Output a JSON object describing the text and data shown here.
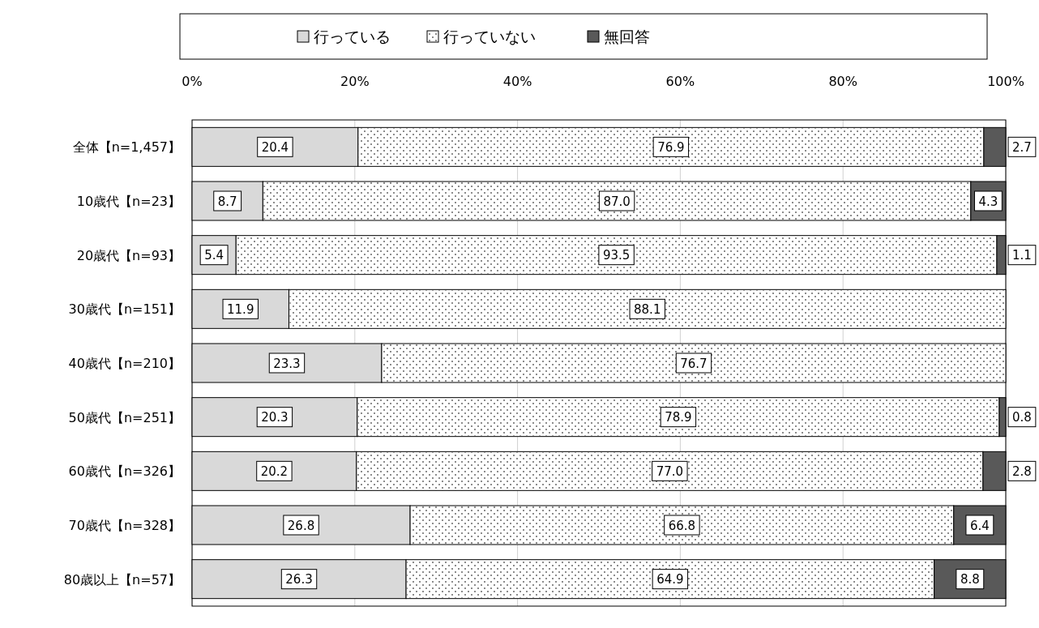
{
  "chart_data": {
    "type": "bar",
    "orientation": "horizontal",
    "stacked": true,
    "legend": "top",
    "grid": "x",
    "categories": [
      "全体【n=1,457】",
      "10歳代【n=23】",
      "20歳代【n=93】",
      "30歳代【n=151】",
      "40歳代【n=210】",
      "50歳代【n=251】",
      "60歳代【n=326】",
      "70歳代【n=328】",
      "80歳以上【n=57】"
    ],
    "xlim": [
      0,
      100
    ],
    "xticks": [
      {
        "value": 0,
        "label": "0%"
      },
      {
        "value": 20,
        "label": "20%"
      },
      {
        "value": 40,
        "label": "40%"
      },
      {
        "value": 60,
        "label": "60%"
      },
      {
        "value": 80,
        "label": "80%"
      },
      {
        "value": 100,
        "label": "100%"
      }
    ],
    "series": [
      {
        "name": "行っている",
        "color": "#d9d9d9",
        "values": [
          20.4,
          8.7,
          5.4,
          11.9,
          23.3,
          20.3,
          20.2,
          26.8,
          26.3
        ],
        "value_labels": [
          "20.4",
          "8.7",
          "5.4",
          "11.9",
          "23.3",
          "20.3",
          "20.2",
          "26.8",
          "26.3"
        ]
      },
      {
        "name": "行っていない",
        "color": "#ffffff",
        "values": [
          76.9,
          87.0,
          93.5,
          88.1,
          76.7,
          78.9,
          77.0,
          66.8,
          64.9
        ],
        "value_labels": [
          "76.9",
          "87.0",
          "93.5",
          "88.1",
          "76.7",
          "78.9",
          "77.0",
          "66.8",
          "64.9"
        ]
      },
      {
        "name": "無回答",
        "color": "#595959",
        "values": [
          2.7,
          4.3,
          1.1,
          null,
          null,
          0.8,
          2.8,
          6.4,
          8.8
        ],
        "value_labels": [
          "2.7",
          "4.3",
          "1.1",
          null,
          null,
          "0.8",
          "2.8",
          "6.4",
          "8.8"
        ]
      }
    ]
  }
}
